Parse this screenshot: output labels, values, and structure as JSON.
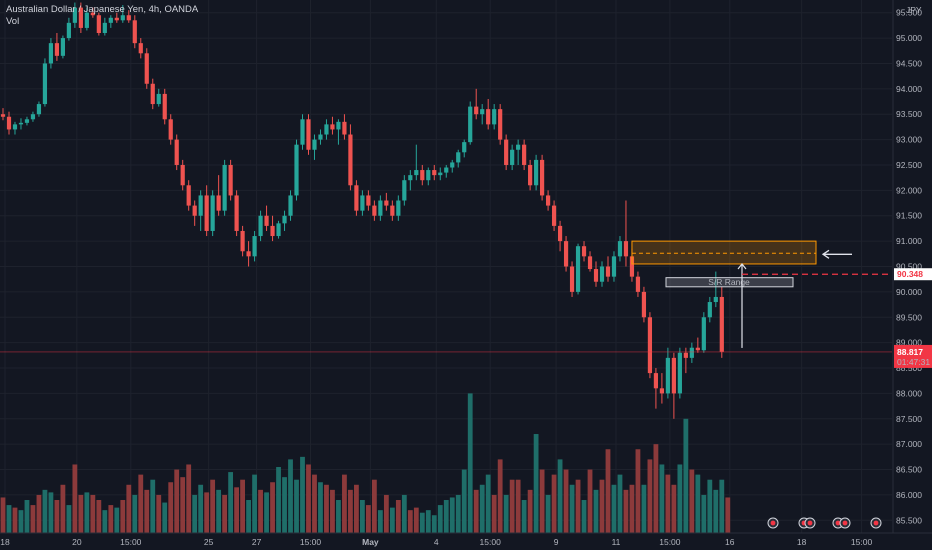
{
  "header": {
    "symbol_line": "Australian Dollar / Japanese Yen, 4h, OANDA",
    "volume_label": "Vol"
  },
  "currency": "JPY",
  "colors": {
    "background": "#131722",
    "up": "#26a69a",
    "down": "#ef5350",
    "volume_up": "#1f6e69",
    "volume_down": "#8c3a3b",
    "grid": "#1e222d",
    "zone": "#ff9800",
    "price_tag": "#f23645"
  },
  "chart_data": {
    "type": "candlestick",
    "ylim": [
      85.25,
      95.75
    ],
    "y_ticks": [
      "95.500",
      "95.000",
      "94.500",
      "94.000",
      "93.500",
      "93.000",
      "92.500",
      "92.000",
      "91.500",
      "91.000",
      "90.500",
      "90.000",
      "89.500",
      "89.000",
      "88.500",
      "88.000",
      "87.500",
      "87.000",
      "86.500",
      "86.000",
      "85.500"
    ],
    "x_ticks": [
      "18",
      "20",
      "15:00",
      "25",
      "27",
      "15:00",
      "May",
      "4",
      "15:00",
      "9",
      "11",
      "15:00",
      "16",
      "18",
      "15:00"
    ],
    "ohlc": [
      [
        93.5,
        93.62,
        93.38,
        93.45
      ],
      [
        93.45,
        93.55,
        93.1,
        93.2
      ],
      [
        93.2,
        93.35,
        93.1,
        93.3
      ],
      [
        93.3,
        93.42,
        93.2,
        93.33
      ],
      [
        93.33,
        93.45,
        93.28,
        93.4
      ],
      [
        93.4,
        93.55,
        93.35,
        93.5
      ],
      [
        93.5,
        93.75,
        93.45,
        93.7
      ],
      [
        93.7,
        94.6,
        93.65,
        94.5
      ],
      [
        94.5,
        95.0,
        94.4,
        94.9
      ],
      [
        94.9,
        95.1,
        94.55,
        94.65
      ],
      [
        94.65,
        95.05,
        94.6,
        95.0
      ],
      [
        95.0,
        95.4,
        94.95,
        95.3
      ],
      [
        95.3,
        95.7,
        95.2,
        95.6
      ],
      [
        95.6,
        95.7,
        95.1,
        95.2
      ],
      [
        95.2,
        95.6,
        95.15,
        95.5
      ],
      [
        95.5,
        95.6,
        95.4,
        95.45
      ],
      [
        95.45,
        95.5,
        95.05,
        95.1
      ],
      [
        95.1,
        95.4,
        95.05,
        95.3
      ],
      [
        95.3,
        95.45,
        95.2,
        95.4
      ],
      [
        95.4,
        95.5,
        95.3,
        95.35
      ],
      [
        95.35,
        95.65,
        95.3,
        95.45
      ],
      [
        95.45,
        95.55,
        95.3,
        95.35
      ],
      [
        95.35,
        95.45,
        94.8,
        94.9
      ],
      [
        94.9,
        95.0,
        94.6,
        94.7
      ],
      [
        94.7,
        94.8,
        94.0,
        94.1
      ],
      [
        94.1,
        94.2,
        93.6,
        93.7
      ],
      [
        93.7,
        94.0,
        93.65,
        93.9
      ],
      [
        93.9,
        94.0,
        93.3,
        93.4
      ],
      [
        93.4,
        93.5,
        92.9,
        93.0
      ],
      [
        93.0,
        93.1,
        92.4,
        92.5
      ],
      [
        92.5,
        92.6,
        92.0,
        92.1
      ],
      [
        92.1,
        92.2,
        91.6,
        91.7
      ],
      [
        91.7,
        91.8,
        91.3,
        91.5
      ],
      [
        91.5,
        92.0,
        91.2,
        91.9
      ],
      [
        91.9,
        92.1,
        91.1,
        91.2
      ],
      [
        91.2,
        92.0,
        91.1,
        91.9
      ],
      [
        91.9,
        92.3,
        91.5,
        91.6
      ],
      [
        91.6,
        92.6,
        91.5,
        92.5
      ],
      [
        92.5,
        92.6,
        91.8,
        91.9
      ],
      [
        91.9,
        92.0,
        91.1,
        91.2
      ],
      [
        91.2,
        91.3,
        90.7,
        90.8
      ],
      [
        90.8,
        91.0,
        90.5,
        90.7
      ],
      [
        90.7,
        91.2,
        90.6,
        91.1
      ],
      [
        91.1,
        91.6,
        91.0,
        91.5
      ],
      [
        91.5,
        91.7,
        91.2,
        91.3
      ],
      [
        91.3,
        91.5,
        91.0,
        91.1
      ],
      [
        91.1,
        91.4,
        91.05,
        91.35
      ],
      [
        91.35,
        91.6,
        91.2,
        91.5
      ],
      [
        91.5,
        92.0,
        91.4,
        91.9
      ],
      [
        91.9,
        93.0,
        91.8,
        92.9
      ],
      [
        92.9,
        93.5,
        92.8,
        93.4
      ],
      [
        93.4,
        93.5,
        92.7,
        92.8
      ],
      [
        92.8,
        93.1,
        92.6,
        93.0
      ],
      [
        93.0,
        93.2,
        92.9,
        93.1
      ],
      [
        93.1,
        93.4,
        93.0,
        93.3
      ],
      [
        93.3,
        93.45,
        93.1,
        93.2
      ],
      [
        93.2,
        93.4,
        92.9,
        93.35
      ],
      [
        93.35,
        93.5,
        93.0,
        93.1
      ],
      [
        93.1,
        93.3,
        92.0,
        92.1
      ],
      [
        92.1,
        92.2,
        91.5,
        91.6
      ],
      [
        91.6,
        92.0,
        91.5,
        91.9
      ],
      [
        91.9,
        92.0,
        91.6,
        91.7
      ],
      [
        91.7,
        91.8,
        91.4,
        91.5
      ],
      [
        91.5,
        91.9,
        91.4,
        91.8
      ],
      [
        91.8,
        91.95,
        91.6,
        91.7
      ],
      [
        91.7,
        91.8,
        91.4,
        91.5
      ],
      [
        91.5,
        91.9,
        91.4,
        91.8
      ],
      [
        91.8,
        92.3,
        91.7,
        92.2
      ],
      [
        92.2,
        92.4,
        92.0,
        92.3
      ],
      [
        92.3,
        92.9,
        92.2,
        92.4
      ],
      [
        92.4,
        92.5,
        92.1,
        92.2
      ],
      [
        92.2,
        92.45,
        92.1,
        92.4
      ],
      [
        92.4,
        92.5,
        92.2,
        92.3
      ],
      [
        92.3,
        92.45,
        92.2,
        92.35
      ],
      [
        92.35,
        92.5,
        92.25,
        92.45
      ],
      [
        92.45,
        92.6,
        92.35,
        92.55
      ],
      [
        92.55,
        92.8,
        92.45,
        92.75
      ],
      [
        92.75,
        93.0,
        92.65,
        92.95
      ],
      [
        92.95,
        93.75,
        92.9,
        93.65
      ],
      [
        93.65,
        94.0,
        93.4,
        93.5
      ],
      [
        93.5,
        93.7,
        93.3,
        93.6
      ],
      [
        93.6,
        93.8,
        93.2,
        93.3
      ],
      [
        93.3,
        93.7,
        93.2,
        93.6
      ],
      [
        93.6,
        93.7,
        92.9,
        93.0
      ],
      [
        93.0,
        93.1,
        92.4,
        92.5
      ],
      [
        92.5,
        92.9,
        92.4,
        92.8
      ],
      [
        92.8,
        93.0,
        92.5,
        92.9
      ],
      [
        92.9,
        93.0,
        92.4,
        92.5
      ],
      [
        92.5,
        92.6,
        92.0,
        92.1
      ],
      [
        92.1,
        92.7,
        92.0,
        92.6
      ],
      [
        92.6,
        92.7,
        91.8,
        91.9
      ],
      [
        91.9,
        92.0,
        91.6,
        91.7
      ],
      [
        91.7,
        91.8,
        91.2,
        91.3
      ],
      [
        91.3,
        91.4,
        90.8,
        91.0
      ],
      [
        91.0,
        91.1,
        90.4,
        90.5
      ],
      [
        90.5,
        90.6,
        89.9,
        90.0
      ],
      [
        90.0,
        90.95,
        89.95,
        90.9
      ],
      [
        90.9,
        91.0,
        90.6,
        90.7
      ],
      [
        90.7,
        90.8,
        90.4,
        90.45
      ],
      [
        90.45,
        90.6,
        90.1,
        90.2
      ],
      [
        90.2,
        90.6,
        90.1,
        90.5
      ],
      [
        90.5,
        90.7,
        90.2,
        90.3
      ],
      [
        90.3,
        90.8,
        90.2,
        90.7
      ],
      [
        90.7,
        91.1,
        90.6,
        91.0
      ],
      [
        91.0,
        91.8,
        90.5,
        90.7
      ],
      [
        90.7,
        90.85,
        90.2,
        90.3
      ],
      [
        90.3,
        90.4,
        89.9,
        90.0
      ],
      [
        90.0,
        90.1,
        89.4,
        89.5
      ],
      [
        89.5,
        89.6,
        88.3,
        88.4
      ],
      [
        88.4,
        88.5,
        87.7,
        88.1
      ],
      [
        88.1,
        88.4,
        87.8,
        88.0
      ],
      [
        88.0,
        88.9,
        87.9,
        88.7
      ],
      [
        88.7,
        88.8,
        87.5,
        88.0
      ],
      [
        88.0,
        88.9,
        87.9,
        88.8
      ],
      [
        88.8,
        88.9,
        88.4,
        88.7
      ],
      [
        88.7,
        89.0,
        88.6,
        88.9
      ],
      [
        88.9,
        89.1,
        88.8,
        88.85
      ],
      [
        88.85,
        89.6,
        88.8,
        89.5
      ],
      [
        89.5,
        89.9,
        89.4,
        89.8
      ],
      [
        89.8,
        90.4,
        89.7,
        89.9
      ],
      [
        89.9,
        90.1,
        88.7,
        88.82
      ]
    ],
    "volume": [
      [
        85.95,
        "down"
      ],
      [
        85.8,
        "up"
      ],
      [
        85.75,
        "down"
      ],
      [
        85.7,
        "up"
      ],
      [
        85.9,
        "up"
      ],
      [
        85.8,
        "down"
      ],
      [
        86.0,
        "down"
      ],
      [
        86.1,
        "up"
      ],
      [
        86.05,
        "up"
      ],
      [
        85.9,
        "down"
      ],
      [
        86.2,
        "down"
      ],
      [
        85.8,
        "up"
      ],
      [
        86.6,
        "down"
      ],
      [
        86.0,
        "down"
      ],
      [
        86.05,
        "up"
      ],
      [
        86.0,
        "down"
      ],
      [
        85.9,
        "down"
      ],
      [
        85.7,
        "up"
      ],
      [
        85.8,
        "down"
      ],
      [
        85.75,
        "up"
      ],
      [
        85.9,
        "down"
      ],
      [
        86.2,
        "down"
      ],
      [
        86.0,
        "up"
      ],
      [
        86.4,
        "down"
      ],
      [
        86.1,
        "down"
      ],
      [
        86.3,
        "up"
      ],
      [
        86.0,
        "down"
      ],
      [
        85.85,
        "up"
      ],
      [
        86.25,
        "down"
      ],
      [
        86.5,
        "down"
      ],
      [
        86.35,
        "down"
      ],
      [
        86.6,
        "down"
      ],
      [
        86.0,
        "up"
      ],
      [
        86.2,
        "up"
      ],
      [
        86.05,
        "down"
      ],
      [
        86.3,
        "down"
      ],
      [
        86.1,
        "up"
      ],
      [
        86.0,
        "down"
      ],
      [
        86.45,
        "up"
      ],
      [
        86.15,
        "down"
      ],
      [
        86.3,
        "down"
      ],
      [
        85.9,
        "up"
      ],
      [
        86.4,
        "up"
      ],
      [
        86.1,
        "down"
      ],
      [
        86.05,
        "up"
      ],
      [
        86.25,
        "down"
      ],
      [
        86.55,
        "up"
      ],
      [
        86.35,
        "up"
      ],
      [
        86.7,
        "up"
      ],
      [
        86.3,
        "up"
      ],
      [
        86.75,
        "up"
      ],
      [
        86.6,
        "down"
      ],
      [
        86.4,
        "down"
      ],
      [
        86.25,
        "up"
      ],
      [
        86.2,
        "down"
      ],
      [
        86.1,
        "down"
      ],
      [
        85.9,
        "up"
      ],
      [
        86.4,
        "down"
      ],
      [
        86.1,
        "down"
      ],
      [
        86.2,
        "down"
      ],
      [
        85.9,
        "up"
      ],
      [
        85.8,
        "down"
      ],
      [
        86.3,
        "down"
      ],
      [
        85.7,
        "up"
      ],
      [
        86.0,
        "down"
      ],
      [
        85.75,
        "up"
      ],
      [
        85.9,
        "down"
      ],
      [
        86.0,
        "up"
      ],
      [
        85.7,
        "down"
      ],
      [
        85.75,
        "down"
      ],
      [
        85.65,
        "up"
      ],
      [
        85.7,
        "up"
      ],
      [
        85.6,
        "up"
      ],
      [
        85.8,
        "up"
      ],
      [
        85.9,
        "up"
      ],
      [
        85.95,
        "up"
      ],
      [
        86.0,
        "up"
      ],
      [
        86.5,
        "up"
      ],
      [
        88.0,
        "up"
      ],
      [
        86.1,
        "down"
      ],
      [
        86.2,
        "up"
      ],
      [
        86.4,
        "up"
      ],
      [
        86.0,
        "down"
      ],
      [
        86.7,
        "down"
      ],
      [
        86.0,
        "up"
      ],
      [
        86.3,
        "down"
      ],
      [
        86.3,
        "down"
      ],
      [
        85.9,
        "up"
      ],
      [
        86.1,
        "down"
      ],
      [
        87.2,
        "up"
      ],
      [
        86.5,
        "down"
      ],
      [
        86.0,
        "up"
      ],
      [
        86.4,
        "down"
      ],
      [
        86.7,
        "up"
      ],
      [
        86.5,
        "down"
      ],
      [
        86.2,
        "up"
      ],
      [
        86.3,
        "down"
      ],
      [
        85.9,
        "up"
      ],
      [
        86.5,
        "down"
      ],
      [
        86.1,
        "up"
      ],
      [
        86.3,
        "down"
      ],
      [
        86.9,
        "down"
      ],
      [
        86.2,
        "up"
      ],
      [
        86.4,
        "up"
      ],
      [
        86.1,
        "down"
      ],
      [
        86.2,
        "down"
      ],
      [
        86.9,
        "down"
      ],
      [
        86.2,
        "up"
      ],
      [
        86.7,
        "down"
      ],
      [
        87.0,
        "down"
      ],
      [
        86.6,
        "up"
      ],
      [
        86.4,
        "down"
      ],
      [
        86.2,
        "down"
      ],
      [
        86.6,
        "up"
      ],
      [
        87.5,
        "up"
      ],
      [
        86.5,
        "down"
      ],
      [
        86.4,
        "up"
      ],
      [
        86.0,
        "up"
      ],
      [
        86.3,
        "up"
      ],
      [
        86.1,
        "up"
      ],
      [
        86.3,
        "up"
      ],
      [
        85.95,
        "down"
      ]
    ],
    "zone": {
      "upper": 91.0,
      "lower": 90.55,
      "mid": 90.76
    },
    "sr_range_label": "S/R Range",
    "sr_range": {
      "upper": 90.28,
      "lower": 90.1
    },
    "dashed_level": {
      "value": 90.348,
      "label": "90.348"
    },
    "current_price": {
      "value": 88.817,
      "label": "88.817",
      "countdown": "01:47:31"
    }
  }
}
